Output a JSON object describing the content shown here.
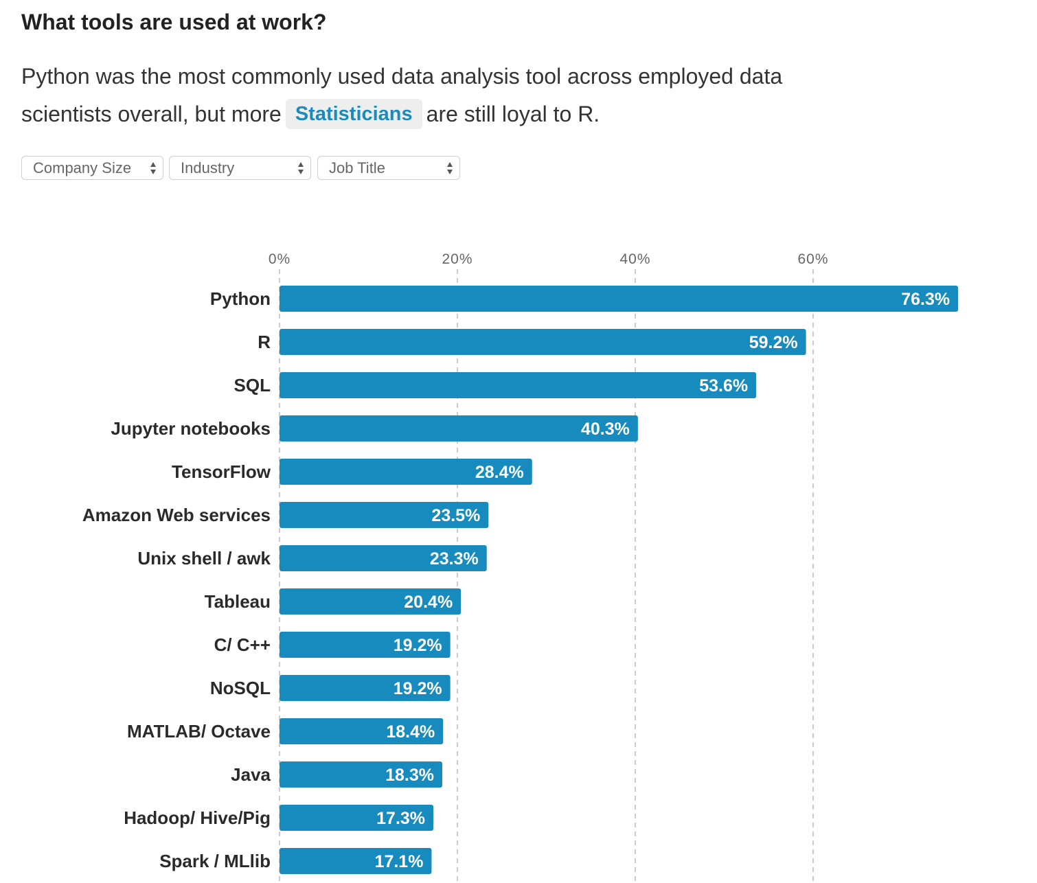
{
  "header": {
    "title": "What tools are used at work?"
  },
  "lede": {
    "line1": "Python was the most commonly used data analysis tool across employed data",
    "line2_before": "scientists overall, but more",
    "highlight": "Statisticians",
    "line2_after": "are still loyal to R."
  },
  "filters": [
    {
      "label": "Company Size",
      "icon": "updown-arrows-icon"
    },
    {
      "label": "Industry",
      "icon": "updown-arrows-icon"
    },
    {
      "label": "Job Title",
      "icon": "updown-arrows-icon"
    }
  ],
  "colors": {
    "bar": "#178bbd",
    "highlight_text": "#1a8bbc",
    "grid": "#cccccc"
  },
  "chart_data": {
    "type": "bar",
    "orientation": "horizontal",
    "title": "",
    "xlabel": "",
    "ylabel": "",
    "xlim": [
      0,
      80
    ],
    "xticks": [
      0,
      20,
      40,
      60
    ],
    "xtick_labels": [
      "0%",
      "20%",
      "40%",
      "60%"
    ],
    "grid": "vertical dashed",
    "value_format": "percent",
    "categories": [
      "Python",
      "R",
      "SQL",
      "Jupyter notebooks",
      "TensorFlow",
      "Amazon Web services",
      "Unix shell / awk",
      "Tableau",
      "C/ C++",
      "NoSQL",
      "MATLAB/ Octave",
      "Java",
      "Hadoop/ Hive/Pig",
      "Spark / MLlib"
    ],
    "values": [
      76.3,
      59.2,
      53.6,
      40.3,
      28.4,
      23.5,
      23.3,
      20.4,
      19.2,
      19.2,
      18.4,
      18.3,
      17.3,
      17.1
    ],
    "value_labels": [
      "76.3%",
      "59.2%",
      "53.6%",
      "40.3%",
      "28.4%",
      "23.5%",
      "23.3%",
      "20.4%",
      "19.2%",
      "19.2%",
      "18.4%",
      "18.3%",
      "17.3%",
      "17.1%"
    ]
  }
}
